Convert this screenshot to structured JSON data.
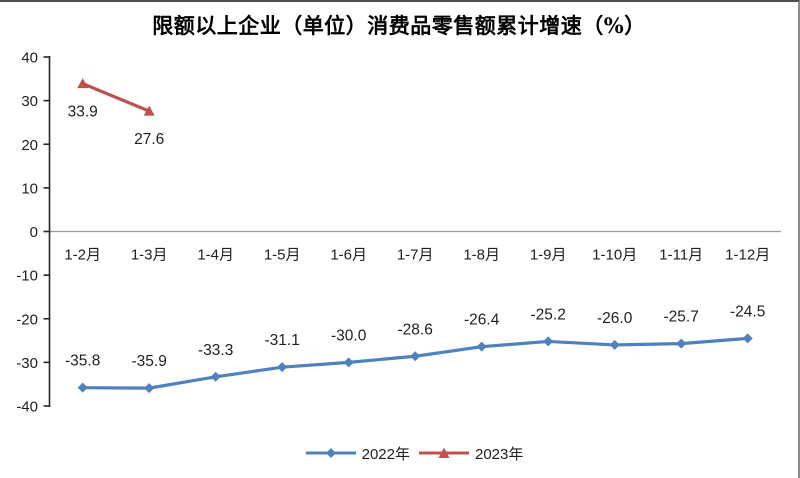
{
  "chart_data": {
    "type": "line",
    "title": "限额以上企业（单位）消费品零售额累计增速（%）",
    "categories": [
      "1-2月",
      "1-3月",
      "1-4月",
      "1-5月",
      "1-6月",
      "1-7月",
      "1-8月",
      "1-9月",
      "1-10月",
      "1-11月",
      "1-12月"
    ],
    "series": [
      {
        "name": "2022年",
        "color": "#4F81BD",
        "marker": "diamond",
        "label_position": "above",
        "values": [
          -35.8,
          -35.9,
          -33.3,
          -31.1,
          -30.0,
          -28.6,
          -26.4,
          -25.2,
          -26.0,
          -25.7,
          -24.5
        ]
      },
      {
        "name": "2023年",
        "color": "#C0504D",
        "marker": "triangle",
        "label_position": "below",
        "values": [
          33.9,
          27.6
        ]
      }
    ],
    "xlabel": "",
    "ylabel": "",
    "ylim": [
      -40,
      40
    ],
    "ytick_step": 10,
    "ytick_labels": [
      "40",
      "30",
      "20",
      "10",
      "0",
      "-10",
      "-20",
      "-30",
      "-40"
    ],
    "grid": "zero-line-only",
    "legend_position": "bottom",
    "colors": {
      "axis": "#262626",
      "zero_line": "#9c9c9c",
      "tick_text": "#1f1f1f",
      "data_label_text": "#1f1f1f",
      "background": "#ffffff"
    }
  }
}
